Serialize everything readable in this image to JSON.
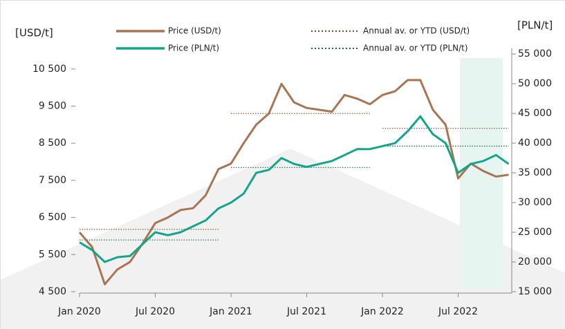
{
  "chart_data": {
    "type": "line",
    "y_label": "[USD/t]",
    "y2_label": "[PLN/t]",
    "categories": [
      "Jan 2020",
      null,
      null,
      null,
      null,
      null,
      "Jul 2020",
      null,
      null,
      null,
      null,
      null,
      "Jan 2021",
      null,
      null,
      null,
      null,
      null,
      "Jul 2021",
      null,
      null,
      null,
      null,
      null,
      "Jan 2022",
      null,
      null,
      null,
      null,
      null,
      "Jul 2022",
      null,
      null,
      null,
      null
    ],
    "series": [
      {
        "name": "Price (USD/t)",
        "color": "#a97452",
        "style": "solid",
        "values": [
          6100,
          5700,
          4700,
          5100,
          5300,
          5800,
          6350,
          6500,
          6700,
          6750,
          7100,
          7800,
          7950,
          8500,
          9000,
          9300,
          10100,
          9600,
          9450,
          9400,
          9350,
          9800,
          9700,
          9550,
          9800,
          9900,
          10200,
          10200,
          9400,
          9000,
          7550,
          7950,
          7750,
          7600,
          7650
        ]
      },
      {
        "name": "Price (PLN/t)",
        "color": "#12a58a",
        "style": "solid",
        "axis": "y2",
        "values": [
          23300,
          22000,
          20000,
          20800,
          21000,
          23000,
          25000,
          24500,
          25000,
          26000,
          27000,
          29000,
          30000,
          31500,
          35000,
          35500,
          37500,
          36500,
          36000,
          36500,
          37000,
          38000,
          39000,
          39000,
          39500,
          40000,
          42000,
          44500,
          41500,
          40000,
          35000,
          36500,
          37000,
          38000,
          36500
        ]
      },
      {
        "name": "Annual av. or YTD (USD/t)",
        "color": "#7a4a28",
        "style": "dotted",
        "values": [
          6180,
          6180,
          6180,
          6180,
          6180,
          6180,
          6180,
          6180,
          6180,
          6180,
          6180,
          6180,
          9300,
          9300,
          9300,
          9300,
          9300,
          9300,
          9300,
          9300,
          9300,
          9300,
          9300,
          9300,
          8900,
          8900,
          8900,
          8900,
          8900,
          8900,
          8900,
          8900,
          8900,
          8900,
          8900
        ]
      },
      {
        "name": "Annual av. or YTD (PLN/t)",
        "color": "#1a6a4a",
        "style": "dotted",
        "axis": "y2",
        "values": [
          23700,
          23700,
          23700,
          23700,
          23700,
          23700,
          23700,
          23700,
          23700,
          23700,
          23700,
          23700,
          35900,
          35900,
          35900,
          35900,
          35900,
          35900,
          35900,
          35900,
          35900,
          35900,
          35900,
          35900,
          39500,
          39500,
          39500,
          39500,
          39500,
          39500,
          39500,
          39500,
          39500,
          39500,
          39500
        ]
      }
    ],
    "ylim": [
      4500,
      11800
    ],
    "yticks": [
      {
        "value": 4500,
        "label": "4 500"
      },
      {
        "value": 5500,
        "label": "5 500"
      },
      {
        "value": 6500,
        "label": "6 500"
      },
      {
        "value": 7500,
        "label": "7 500"
      },
      {
        "value": 8500,
        "label": "8 500"
      },
      {
        "value": 9500,
        "label": "9 500"
      },
      {
        "value": 10500,
        "label": "10 500"
      }
    ],
    "y2lim": [
      15000,
      60600
    ],
    "y2ticks": [
      {
        "value": 15000,
        "label": "15 000"
      },
      {
        "value": 20000,
        "label": "20 000"
      },
      {
        "value": 25000,
        "label": "25 000"
      },
      {
        "value": 30000,
        "label": "30 000"
      },
      {
        "value": 35000,
        "label": "35 000"
      },
      {
        "value": 40000,
        "label": "40 000"
      },
      {
        "value": 45000,
        "label": "45 000"
      },
      {
        "value": 50000,
        "label": "50 000"
      },
      {
        "value": 55000,
        "label": "55 000"
      }
    ]
  }
}
